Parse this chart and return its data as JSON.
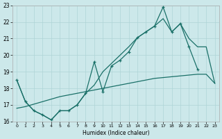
{
  "xlabel": "Humidex (Indice chaleur)",
  "background_color": "#cce8ea",
  "grid_color": "#aed4d6",
  "line_color": "#1a7068",
  "xlim_min": -0.5,
  "xlim_max": 23.5,
  "ylim_min": 16,
  "ylim_max": 23,
  "xticks": [
    0,
    1,
    2,
    3,
    4,
    5,
    6,
    7,
    8,
    9,
    10,
    11,
    12,
    13,
    14,
    15,
    16,
    17,
    18,
    19,
    20,
    21,
    22,
    23
  ],
  "yticks": [
    16,
    17,
    18,
    19,
    20,
    21,
    22,
    23
  ],
  "line1_x": [
    0,
    1,
    2,
    3,
    4,
    5,
    6,
    7,
    8,
    9,
    10,
    11,
    12,
    13,
    14,
    15,
    16,
    17,
    18,
    19,
    20,
    21,
    22
  ],
  "line1_y": [
    18.5,
    17.2,
    16.65,
    16.4,
    16.1,
    16.65,
    16.65,
    17.0,
    17.7,
    19.6,
    17.8,
    19.35,
    19.7,
    20.2,
    21.05,
    21.4,
    21.75,
    22.9,
    21.4,
    21.9,
    20.5,
    19.15,
    null
  ],
  "line2_x": [
    0,
    1,
    2,
    3,
    4,
    5,
    6,
    7,
    8,
    9,
    10,
    11,
    12,
    13,
    14,
    15,
    16,
    17,
    18,
    19,
    20,
    21,
    22,
    23
  ],
  "line2_y": [
    18.5,
    17.2,
    16.65,
    16.4,
    16.1,
    16.65,
    16.65,
    17.0,
    17.7,
    18.2,
    19.0,
    19.5,
    20.0,
    20.5,
    21.05,
    21.4,
    21.75,
    22.2,
    21.4,
    21.9,
    21.0,
    20.5,
    20.5,
    18.3
  ],
  "line3_x": [
    0,
    1,
    2,
    3,
    4,
    5,
    6,
    7,
    8,
    9,
    10,
    11,
    12,
    13,
    14,
    15,
    16,
    17,
    18,
    19,
    20,
    21,
    22,
    23
  ],
  "line3_y": [
    16.8,
    16.9,
    17.05,
    17.2,
    17.35,
    17.5,
    17.6,
    17.7,
    17.8,
    17.9,
    18.0,
    18.1,
    18.2,
    18.3,
    18.4,
    18.5,
    18.6,
    18.65,
    18.7,
    18.75,
    18.8,
    18.85,
    18.85,
    18.3
  ]
}
